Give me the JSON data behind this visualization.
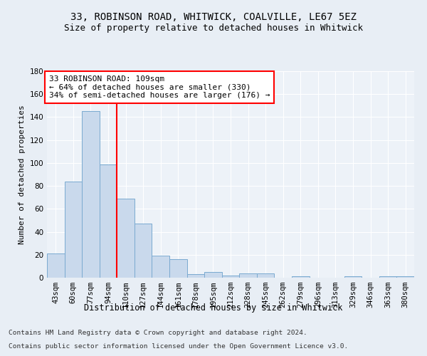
{
  "title1": "33, ROBINSON ROAD, WHITWICK, COALVILLE, LE67 5EZ",
  "title2": "Size of property relative to detached houses in Whitwick",
  "xlabel": "Distribution of detached houses by size in Whitwick",
  "ylabel": "Number of detached properties",
  "footer1": "Contains HM Land Registry data © Crown copyright and database right 2024.",
  "footer2": "Contains public sector information licensed under the Open Government Licence v3.0.",
  "categories": [
    "43sqm",
    "60sqm",
    "77sqm",
    "94sqm",
    "110sqm",
    "127sqm",
    "144sqm",
    "161sqm",
    "178sqm",
    "195sqm",
    "212sqm",
    "228sqm",
    "245sqm",
    "262sqm",
    "279sqm",
    "296sqm",
    "313sqm",
    "329sqm",
    "346sqm",
    "363sqm",
    "380sqm"
  ],
  "values": [
    21,
    84,
    145,
    99,
    69,
    47,
    19,
    16,
    3,
    5,
    2,
    4,
    4,
    0,
    1,
    0,
    0,
    1,
    0,
    1,
    1
  ],
  "bar_color": "#c9d9ec",
  "bar_edge_color": "#7aaad0",
  "highlight_line_bin": 4,
  "property_line_label": "33 ROBINSON ROAD: 109sqm",
  "annot_line1": "← 64% of detached houses are smaller (330)",
  "annot_line2": "34% of semi-detached houses are larger (176) →",
  "annot_box_color": "white",
  "annot_box_edge_color": "red",
  "vline_color": "red",
  "ylim": [
    0,
    180
  ],
  "yticks": [
    0,
    20,
    40,
    60,
    80,
    100,
    120,
    140,
    160,
    180
  ],
  "bg_color": "#e8eef5",
  "plot_bg_color": "#edf2f8",
  "grid_color": "white",
  "title1_fontsize": 10,
  "title2_fontsize": 9,
  "xlabel_fontsize": 8.5,
  "ylabel_fontsize": 8,
  "tick_fontsize": 7.5,
  "annot_fontsize": 8,
  "footer_fontsize": 6.8
}
